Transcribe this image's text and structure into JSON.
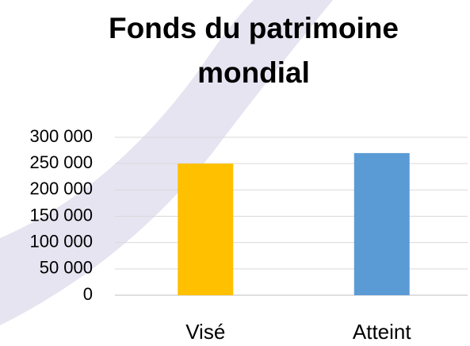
{
  "chart_data": {
    "type": "bar",
    "title": "Fonds du patrimoine mondial",
    "categories": [
      "Visé",
      "Atteint"
    ],
    "values": [
      250000,
      270000
    ],
    "colors": [
      "#ffc000",
      "#5b9bd5"
    ],
    "ylim": [
      0,
      300000
    ],
    "yticks": [
      0,
      {
        "value": 50000,
        "label": "50 000"
      },
      {
        "value": 100000,
        "label": "100 000"
      },
      {
        "value": 150000,
        "label": "150 000"
      },
      {
        "value": 200000,
        "label": "200 000"
      },
      {
        "value": 250000,
        "label": "250 000"
      },
      {
        "value": 300000,
        "label": "300 000"
      }
    ],
    "grid": true
  }
}
